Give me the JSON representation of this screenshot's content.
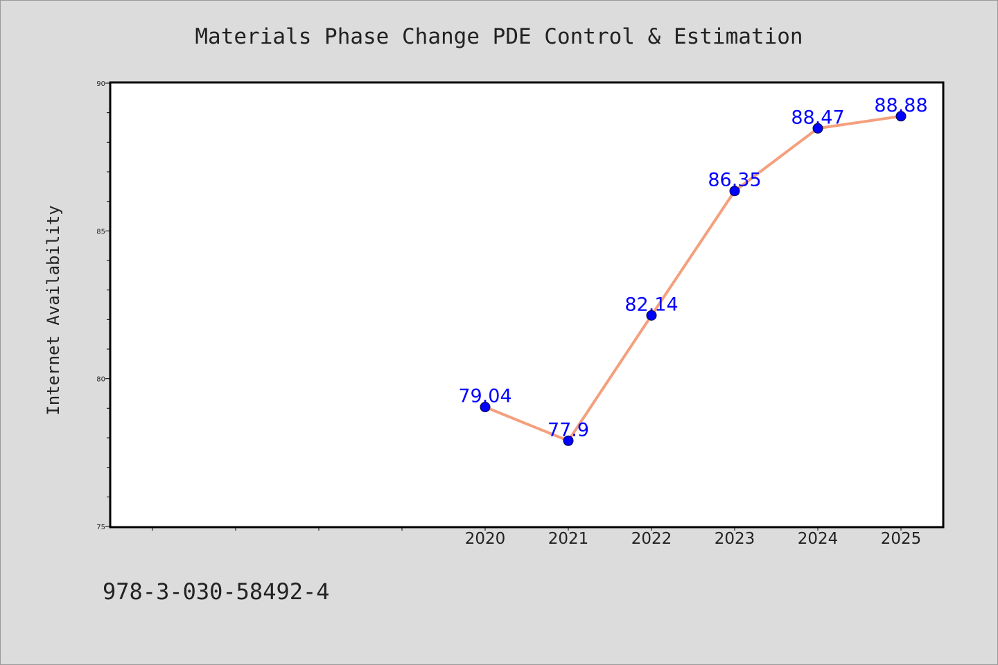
{
  "chart_data": {
    "type": "line",
    "title": "Materials Phase Change PDE Control & Estimation",
    "xlabel": "",
    "ylabel": "Internet Availability",
    "x": [
      "2020",
      "2021",
      "2022",
      "2023",
      "2024",
      "2025"
    ],
    "values": [
      79.04,
      77.9,
      82.14,
      86.35,
      88.47,
      88.88
    ],
    "data_labels": [
      "79.04",
      "77.9",
      "82.14",
      "86.35",
      "88.47",
      "88.88"
    ],
    "ylim": [
      75,
      90
    ],
    "y_ticks": [
      75,
      80,
      85,
      90
    ],
    "y_tick_labels": [
      "75",
      "80",
      "85",
      "90"
    ],
    "grid": false,
    "legend": "none",
    "line_color": "#f4a07e",
    "marker_color": "#0000ff",
    "label_color": "#0000ff"
  },
  "footer": {
    "isbn": "978-3-030-58492-4"
  }
}
